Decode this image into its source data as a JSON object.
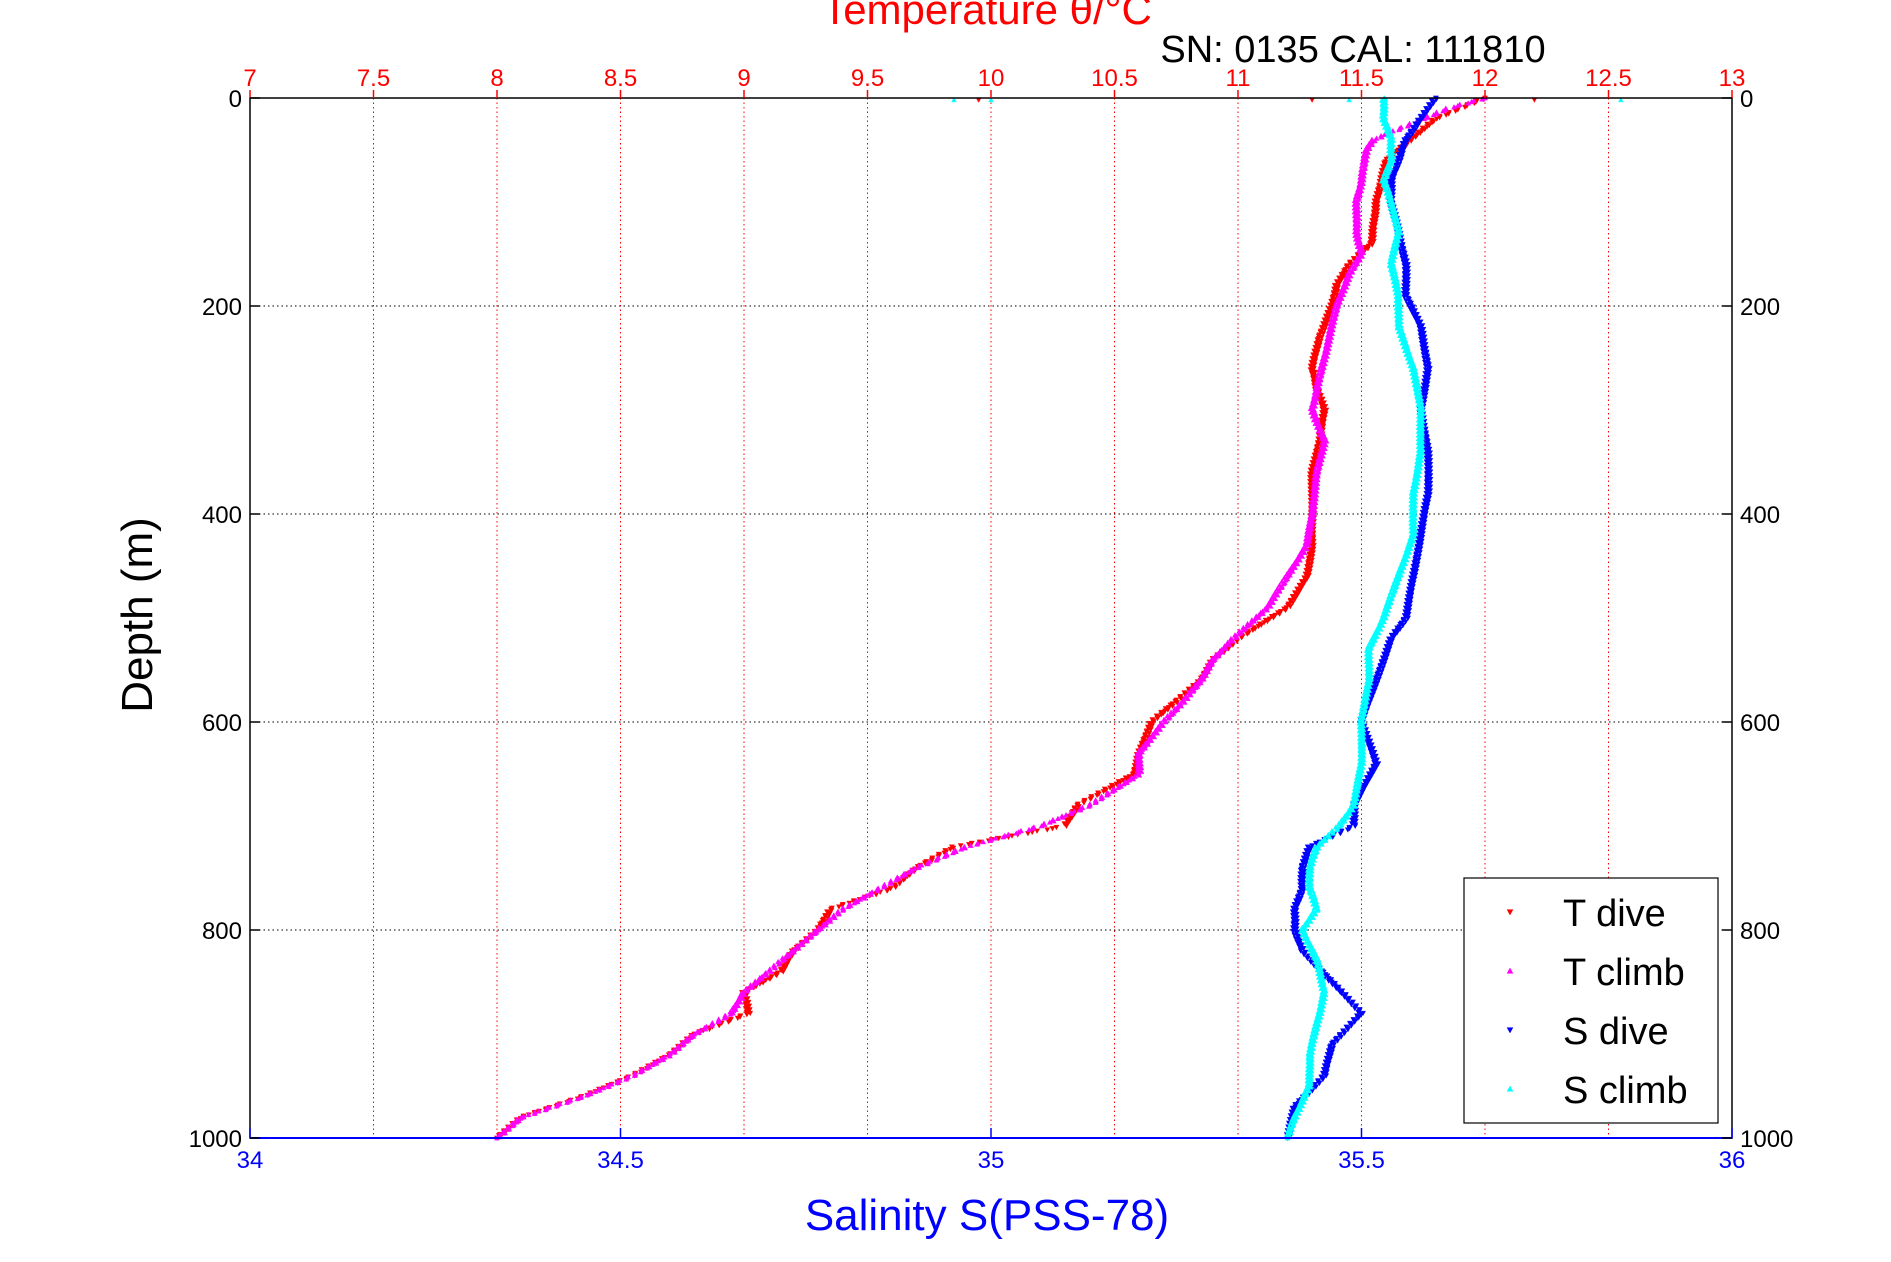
{
  "chart_data": {
    "type": "scatter",
    "title": "Temperature θ/°C",
    "subtitle": "SN: 0135  CAL: 111810",
    "xlabel": "Salinity S(PSS-78)",
    "x2label": "Temperature θ/°C",
    "ylabel": "Depth (m)",
    "xlim": [
      34,
      36
    ],
    "x2lim": [
      7,
      13
    ],
    "ylim": [
      0,
      1000
    ],
    "y_reversed": true,
    "grid": true,
    "legend_position": "bottom-right",
    "x_ticks": [
      "34",
      "34.5",
      "35",
      "35.5",
      "36"
    ],
    "x2_ticks": [
      "7",
      "7.5",
      "8",
      "8.5",
      "9",
      "9.5",
      "10",
      "10.5",
      "11",
      "11.5",
      "12",
      "12.5",
      "13"
    ],
    "y_ticks": [
      "0",
      "200",
      "400",
      "600",
      "800",
      "1000"
    ],
    "colors": {
      "temperature_axis": "#ff0000",
      "salinity_axis": "#0000ff",
      "title_text": "#000000"
    },
    "series": [
      {
        "name": "T dive",
        "axis": "temperature",
        "color": "#ff0000",
        "marker": "triangle-down",
        "depth": [
          0,
          10,
          20,
          30,
          40,
          50,
          60,
          80,
          100,
          120,
          140,
          160,
          180,
          200,
          230,
          260,
          280,
          300,
          330,
          360,
          400,
          430,
          460,
          490,
          520,
          540,
          560,
          580,
          600,
          630,
          650,
          680,
          700,
          720,
          740,
          760,
          780,
          800,
          820,
          840,
          860,
          880,
          900,
          920,
          940,
          960,
          980,
          1000
        ],
        "values": [
          12.0,
          11.9,
          11.8,
          11.75,
          11.7,
          11.65,
          11.6,
          11.58,
          11.56,
          11.55,
          11.54,
          11.45,
          11.4,
          11.38,
          11.33,
          11.3,
          11.32,
          11.35,
          11.33,
          11.3,
          11.3,
          11.3,
          11.28,
          11.2,
          11.0,
          10.9,
          10.85,
          10.75,
          10.65,
          10.6,
          10.58,
          10.35,
          10.3,
          9.85,
          9.7,
          9.6,
          9.35,
          9.3,
          9.2,
          9.15,
          9.0,
          9.02,
          8.8,
          8.7,
          8.55,
          8.35,
          8.1,
          8.0
        ]
      },
      {
        "name": "T climb",
        "axis": "temperature",
        "color": "#ff00ff",
        "marker": "triangle-up",
        "depth": [
          0,
          10,
          20,
          40,
          50,
          80,
          100,
          130,
          150,
          170,
          200,
          240,
          270,
          300,
          330,
          360,
          400,
          430,
          460,
          490,
          520,
          540,
          560,
          580,
          600,
          630,
          650,
          680,
          700,
          720,
          740,
          760,
          780,
          800,
          820,
          840,
          860,
          880,
          900,
          920,
          940,
          960,
          980,
          1000
        ],
        "values": [
          12.0,
          11.85,
          11.75,
          11.55,
          11.52,
          11.5,
          11.48,
          11.48,
          11.5,
          11.45,
          11.4,
          11.36,
          11.33,
          11.3,
          11.35,
          11.32,
          11.3,
          11.28,
          11.2,
          11.12,
          10.98,
          10.9,
          10.85,
          10.78,
          10.7,
          10.6,
          10.6,
          10.4,
          10.2,
          9.9,
          9.7,
          9.55,
          9.4,
          9.3,
          9.2,
          9.1,
          9.0,
          8.95,
          8.8,
          8.7,
          8.55,
          8.35,
          8.1,
          8.0
        ]
      },
      {
        "name": "S dive",
        "axis": "salinity",
        "color": "#0000ff",
        "marker": "triangle-down",
        "depth": [
          0,
          10,
          20,
          40,
          60,
          80,
          100,
          130,
          160,
          190,
          220,
          260,
          300,
          340,
          380,
          420,
          460,
          500,
          520,
          560,
          600,
          640,
          680,
          700,
          720,
          740,
          760,
          780,
          800,
          820,
          850,
          880,
          910,
          940,
          970,
          1000
        ],
        "values": [
          35.6,
          35.59,
          35.58,
          35.56,
          35.55,
          35.54,
          35.54,
          35.55,
          35.56,
          35.56,
          35.58,
          35.59,
          35.58,
          35.59,
          35.59,
          35.58,
          35.57,
          35.56,
          35.54,
          35.52,
          35.5,
          35.52,
          35.49,
          35.49,
          35.43,
          35.42,
          35.42,
          35.41,
          35.41,
          35.42,
          35.46,
          35.5,
          35.46,
          35.45,
          35.41,
          35.4
        ]
      },
      {
        "name": "S climb",
        "axis": "salinity",
        "color": "#00ffff",
        "marker": "triangle-up",
        "depth": [
          0,
          20,
          40,
          60,
          80,
          100,
          130,
          160,
          190,
          220,
          260,
          300,
          340,
          380,
          420,
          460,
          500,
          530,
          560,
          600,
          640,
          680,
          700,
          720,
          740,
          760,
          780,
          800,
          830,
          860,
          890,
          920,
          950,
          980,
          1000
        ],
        "values": [
          35.53,
          35.53,
          35.54,
          35.54,
          35.53,
          35.54,
          35.55,
          35.54,
          35.55,
          35.55,
          35.57,
          35.58,
          35.58,
          35.57,
          35.57,
          35.55,
          35.53,
          35.51,
          35.51,
          35.5,
          35.5,
          35.49,
          35.47,
          35.44,
          35.43,
          35.43,
          35.44,
          35.42,
          35.44,
          35.45,
          35.44,
          35.43,
          35.43,
          35.41,
          35.4
        ]
      }
    ],
    "t_surface_outliers": [
      9.85,
      9.95,
      10.0,
      11.3,
      11.45,
      12.2,
      12.55
    ]
  }
}
